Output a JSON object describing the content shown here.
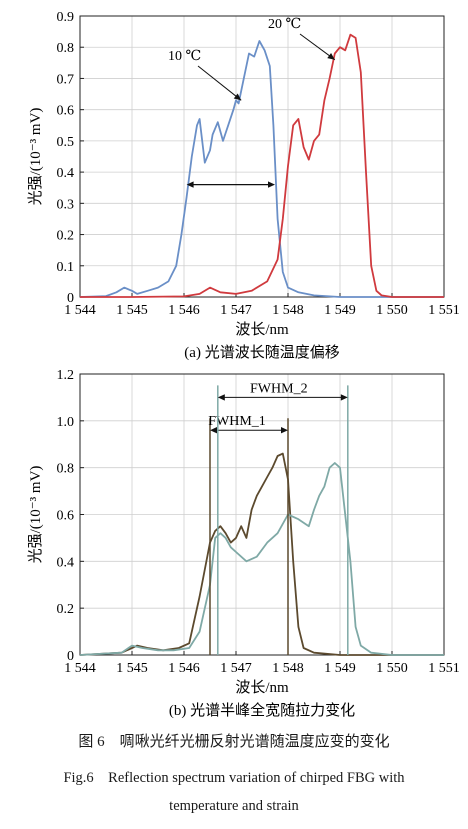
{
  "chart_data": [
    {
      "type": "line",
      "xlabel": "波长/nm",
      "ylabel": "光强/(10⁻³ mV)",
      "xlim": [
        1544,
        1551
      ],
      "ylim": [
        0,
        0.9
      ],
      "x_ticks": [
        "1 544",
        "1 545",
        "1 546",
        "1 547",
        "1 548",
        "1 549",
        "1 550",
        "1 551"
      ],
      "y_ticks": [
        "0",
        "0.1",
        "0.2",
        "0.3",
        "0.4",
        "0.5",
        "0.6",
        "0.7",
        "0.8",
        "0.9"
      ],
      "grid": true,
      "caption": "(a) 光谱波长随温度偏移",
      "annotations": [
        {
          "text": "10 ℃",
          "target": [
            1547.1,
            0.63
          ]
        },
        {
          "text": "20 ℃",
          "target": [
            1548.9,
            0.76
          ]
        }
      ],
      "width_arrow": {
        "x_from": 1546.05,
        "x_to": 1547.75,
        "y": 0.36
      },
      "series": [
        {
          "name": "10 ℃",
          "color": "#6a8fc7",
          "x": [
            1544.0,
            1544.5,
            1544.7,
            1544.85,
            1545.0,
            1545.1,
            1545.3,
            1545.5,
            1545.7,
            1545.85,
            1545.95,
            1546.05,
            1546.15,
            1546.25,
            1546.3,
            1546.35,
            1546.4,
            1546.5,
            1546.55,
            1546.65,
            1546.75,
            1546.85,
            1546.95,
            1547.0,
            1547.05,
            1547.15,
            1547.25,
            1547.35,
            1547.45,
            1547.55,
            1547.65,
            1547.72,
            1547.8,
            1547.9,
            1548.0,
            1548.2,
            1548.5,
            1549.0,
            1550.0,
            1551.0
          ],
          "y": [
            0.0,
            0.003,
            0.015,
            0.03,
            0.02,
            0.01,
            0.02,
            0.03,
            0.05,
            0.1,
            0.2,
            0.32,
            0.45,
            0.55,
            0.57,
            0.5,
            0.43,
            0.47,
            0.52,
            0.56,
            0.5,
            0.55,
            0.6,
            0.63,
            0.62,
            0.7,
            0.78,
            0.77,
            0.82,
            0.79,
            0.74,
            0.55,
            0.25,
            0.08,
            0.03,
            0.015,
            0.005,
            0.0,
            0.0,
            0.0
          ]
        },
        {
          "name": "20 ℃",
          "color": "#d03a3e",
          "x": [
            1544.0,
            1545.0,
            1546.0,
            1546.3,
            1546.5,
            1546.7,
            1547.0,
            1547.3,
            1547.6,
            1547.8,
            1547.9,
            1548.0,
            1548.1,
            1548.2,
            1548.3,
            1548.4,
            1548.5,
            1548.6,
            1548.7,
            1548.8,
            1548.9,
            1549.0,
            1549.1,
            1549.2,
            1549.3,
            1549.4,
            1549.5,
            1549.6,
            1549.7,
            1549.8,
            1550.0,
            1551.0
          ],
          "y": [
            0.0,
            0.0,
            0.002,
            0.01,
            0.03,
            0.015,
            0.01,
            0.02,
            0.05,
            0.12,
            0.25,
            0.42,
            0.55,
            0.57,
            0.48,
            0.44,
            0.5,
            0.52,
            0.63,
            0.7,
            0.78,
            0.8,
            0.79,
            0.84,
            0.83,
            0.72,
            0.4,
            0.1,
            0.02,
            0.005,
            0.0,
            0.0
          ]
        }
      ]
    },
    {
      "type": "line",
      "xlabel": "波长/nm",
      "ylabel": "光强/(10⁻³ mV)",
      "xlim": [
        1544,
        1551
      ],
      "ylim": [
        0,
        1.2
      ],
      "x_ticks": [
        "1 544",
        "1 545",
        "1 546",
        "1 547",
        "1 548",
        "1 549",
        "1 550",
        "1 551"
      ],
      "y_ticks": [
        "0",
        "0.2",
        "0.4",
        "0.6",
        "0.8",
        "1.0",
        "1.2"
      ],
      "grid": true,
      "caption": "(b) 光谱半峰全宽随拉力变化",
      "fwhm_markers": [
        {
          "label": "FWHM_1",
          "x_from": 1546.5,
          "x_to": 1548.0,
          "y": 0.96,
          "color": "#5c4a2e"
        },
        {
          "label": "FWHM_2",
          "x_from": 1546.65,
          "x_to": 1549.15,
          "y": 1.1,
          "color": "#7fa9a6"
        }
      ],
      "series": [
        {
          "name": "",
          "color": "#5c4a2e",
          "x": [
            1544.0,
            1544.8,
            1545.0,
            1545.1,
            1545.3,
            1545.6,
            1545.9,
            1546.1,
            1546.3,
            1546.5,
            1546.6,
            1546.7,
            1546.8,
            1546.9,
            1547.0,
            1547.1,
            1547.2,
            1547.3,
            1547.4,
            1547.5,
            1547.6,
            1547.7,
            1547.8,
            1547.9,
            1548.0,
            1548.1,
            1548.2,
            1548.3,
            1548.5,
            1549.0,
            1551.0
          ],
          "y": [
            0.0,
            0.01,
            0.03,
            0.04,
            0.03,
            0.02,
            0.03,
            0.05,
            0.25,
            0.48,
            0.53,
            0.55,
            0.52,
            0.48,
            0.5,
            0.55,
            0.5,
            0.62,
            0.68,
            0.72,
            0.76,
            0.8,
            0.85,
            0.86,
            0.75,
            0.4,
            0.12,
            0.03,
            0.01,
            0.0,
            0.0
          ]
        },
        {
          "name": "",
          "color": "#7fa9a6",
          "x": [
            1544.0,
            1544.8,
            1545.0,
            1545.2,
            1545.5,
            1545.8,
            1546.1,
            1546.3,
            1546.5,
            1546.6,
            1546.7,
            1546.8,
            1546.9,
            1547.0,
            1547.2,
            1547.4,
            1547.6,
            1547.8,
            1548.0,
            1548.2,
            1548.4,
            1548.5,
            1548.6,
            1548.7,
            1548.8,
            1548.9,
            1549.0,
            1549.1,
            1549.2,
            1549.3,
            1549.4,
            1549.6,
            1550.0,
            1551.0
          ],
          "y": [
            0.0,
            0.01,
            0.04,
            0.03,
            0.02,
            0.02,
            0.03,
            0.1,
            0.3,
            0.5,
            0.52,
            0.5,
            0.46,
            0.44,
            0.4,
            0.42,
            0.48,
            0.52,
            0.6,
            0.58,
            0.55,
            0.62,
            0.68,
            0.72,
            0.8,
            0.82,
            0.8,
            0.6,
            0.4,
            0.12,
            0.04,
            0.01,
            0.0,
            0.0
          ]
        }
      ]
    }
  ],
  "figure": {
    "caption_cn": "图 6　啁啾光纤光栅反射光谱随温度应变的变化",
    "caption_en_line1": "Fig.6　Reflection spectrum variation of chirped FBG with",
    "caption_en_line2": "temperature and strain"
  }
}
